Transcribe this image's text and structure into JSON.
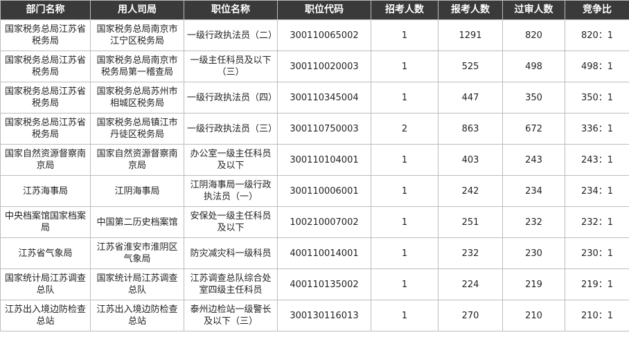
{
  "table": {
    "header": [
      "部门名称",
      "用人司局",
      "职位名称",
      "职位代码",
      "招考人数",
      "报考人数",
      "过审人数",
      "竞争比"
    ],
    "rows": [
      [
        "国家税务总局江苏省税务局",
        "国家税务总局南京市江宁区税务局",
        "一级行政执法员（二）",
        "300110065002",
        "1",
        "1291",
        "820",
        "820：1"
      ],
      [
        "国家税务总局江苏省税务局",
        "国家税务总局南京市税务局第一稽查局",
        "一级主任科员及以下（三）",
        "300110020003",
        "1",
        "525",
        "498",
        "498：1"
      ],
      [
        "国家税务总局江苏省税务局",
        "国家税务总局苏州市相城区税务局",
        "一级行政执法员（四）",
        "300110345004",
        "1",
        "447",
        "350",
        "350：1"
      ],
      [
        "国家税务总局江苏省税务局",
        "国家税务总局镇江市丹徒区税务局",
        "一级行政执法员（三）",
        "300110750003",
        "2",
        "863",
        "672",
        "336：1"
      ],
      [
        "国家自然资源督察南京局",
        "国家自然资源督察南京局",
        "办公室一级主任科员及以下",
        "300110104001",
        "1",
        "403",
        "243",
        "243：1"
      ],
      [
        "江苏海事局",
        "江阴海事局",
        "江阴海事局一级行政执法员（一）",
        "300110006001",
        "1",
        "242",
        "234",
        "234：1"
      ],
      [
        "中央档案馆国家档案局",
        "中国第二历史档案馆",
        "安保处一级主任科员及以下",
        "100210007002",
        "1",
        "251",
        "232",
        "232：1"
      ],
      [
        "江苏省气象局",
        "江苏省淮安市淮阴区气象局",
        "防灾减灾科一级科员",
        "400110014001",
        "1",
        "232",
        "230",
        "230：1"
      ],
      [
        "国家统计局江苏调查总队",
        "国家统计局江苏调查总队",
        "江苏调查总队综合处室四级主任科员",
        "400110135002",
        "1",
        "224",
        "219",
        "219：1"
      ],
      [
        "江苏出入境边防检查总站",
        "江苏出入境边防检查总站",
        "泰州边检站一级警长及以下（三）",
        "300130116013",
        "1",
        "270",
        "210",
        "210：1"
      ]
    ]
  }
}
